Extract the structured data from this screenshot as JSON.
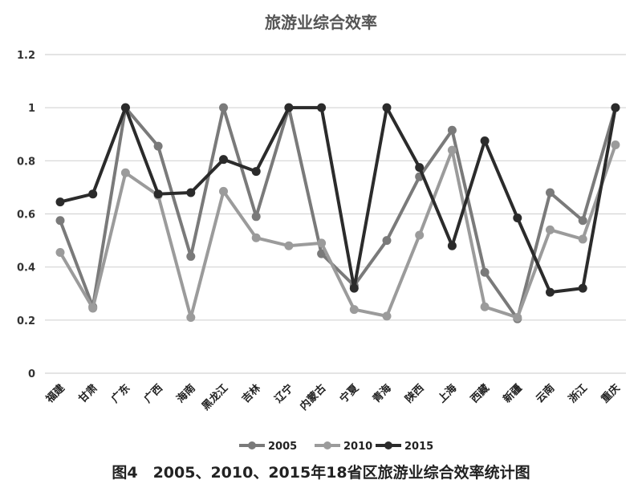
{
  "chart_data": {
    "type": "line",
    "title": "旅游业综合效率",
    "caption": "图4　2005、2010、2015年18省区旅游业综合效率统计图",
    "categories": [
      "福建",
      "甘肃",
      "广东",
      "广西",
      "海南",
      "黑龙江",
      "吉林",
      "辽宁",
      "内蒙古",
      "宁夏",
      "青海",
      "陕西",
      "上海",
      "西藏",
      "新疆",
      "云南",
      "浙江",
      "重庆"
    ],
    "y_ticks": [
      "0",
      "0.2",
      "0.4",
      "0.6",
      "0.8",
      "1",
      "1.2"
    ],
    "ylim": [
      0,
      1.2
    ],
    "grid": true,
    "legend_position": "bottom",
    "series": [
      {
        "name": "2005",
        "color": "#7a7a7a",
        "values": [
          0.575,
          0.25,
          1.0,
          0.855,
          0.44,
          1.0,
          0.59,
          1.0,
          0.45,
          0.33,
          0.5,
          0.74,
          0.915,
          0.38,
          0.205,
          0.68,
          0.575,
          1.0
        ]
      },
      {
        "name": "2010",
        "color": "#9b9b9b",
        "values": [
          0.455,
          0.245,
          0.755,
          0.67,
          0.21,
          0.685,
          0.51,
          0.48,
          0.49,
          0.24,
          0.215,
          0.52,
          0.84,
          0.25,
          0.21,
          0.54,
          0.505,
          0.86
        ]
      },
      {
        "name": "2015",
        "color": "#2b2b2b",
        "values": [
          0.645,
          0.675,
          1.0,
          0.675,
          0.68,
          0.805,
          0.76,
          1.0,
          1.0,
          0.32,
          1.0,
          0.775,
          0.48,
          0.875,
          0.585,
          0.305,
          0.32,
          1.0
        ]
      }
    ]
  }
}
